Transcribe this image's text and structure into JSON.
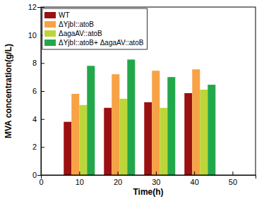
{
  "chart_data": {
    "type": "bar",
    "x_label": "Time(h)",
    "y_label": "MVA concentration(g/L)",
    "x": [
      10,
      20.5,
      31,
      41.5
    ],
    "series": [
      {
        "name": "WT",
        "color": "#9b1010",
        "values": [
          3.8,
          4.8,
          5.2,
          5.85
        ]
      },
      {
        "name": "ΔYjbI::atoB",
        "color": "#f7a245",
        "values": [
          5.8,
          7.2,
          7.45,
          7.55
        ]
      },
      {
        "name": "ΔagaAV::atoB",
        "color": "#bcd63a",
        "values": [
          5.0,
          5.45,
          4.8,
          6.1
        ]
      },
      {
        "name": "ΔYjbI::atoB+ ΔagaAV::atoB",
        "color": "#22a84a",
        "values": [
          7.8,
          8.25,
          7.0,
          6.45
        ]
      }
    ],
    "xlim": [
      0,
      56
    ],
    "xticks": [
      0,
      10,
      20,
      30,
      40,
      50
    ],
    "ylim": [
      0,
      12
    ],
    "yticks": [
      0,
      2,
      4,
      6,
      8,
      10,
      12
    ],
    "legend": "upper-left"
  }
}
